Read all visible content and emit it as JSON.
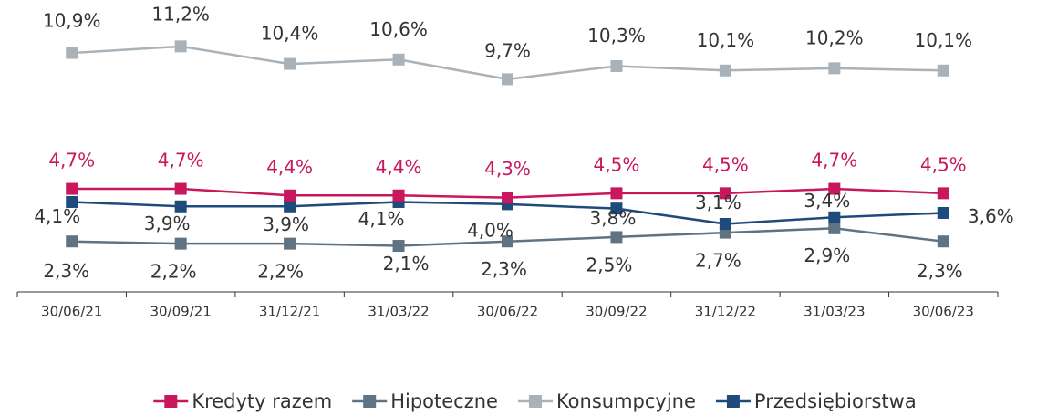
{
  "chart_data": {
    "type": "line",
    "categories": [
      "30/06/21",
      "30/09/21",
      "31/12/21",
      "31/03/22",
      "30/06/22",
      "30/09/22",
      "31/12/22",
      "31/03/23",
      "30/06/23"
    ],
    "ylim": [
      0,
      12.9
    ],
    "series": [
      {
        "name": "Kredyty razem",
        "color": "#c8175d",
        "label_color": "#c8175d",
        "values": [
          4.7,
          4.7,
          4.4,
          4.4,
          4.3,
          4.5,
          4.5,
          4.7,
          4.5
        ],
        "value_labels": [
          "4,7%",
          "4,7%",
          "4,4%",
          "4,4%",
          "4,3%",
          "4,5%",
          "4,5%",
          "4,7%",
          "4,5%"
        ]
      },
      {
        "name": "Hipoteczne",
        "color": "#5f7383",
        "label_color": "#333333",
        "values": [
          2.3,
          2.2,
          2.2,
          2.1,
          2.3,
          2.5,
          2.7,
          2.9,
          2.3
        ],
        "value_labels": [
          "2,3%",
          "2,2%",
          "2,2%",
          "2,1%",
          "2,3%",
          "2,5%",
          "2,7%",
          "2,9%",
          "2,3%"
        ]
      },
      {
        "name": "Konsumpcyjne",
        "color": "#a9b1b9",
        "label_color": "#333333",
        "values": [
          10.9,
          11.2,
          10.4,
          10.6,
          9.7,
          10.3,
          10.1,
          10.2,
          10.1
        ],
        "value_labels": [
          "10,9%",
          "11,2%",
          "10,4%",
          "10,6%",
          "9,7%",
          "10,3%",
          "10,1%",
          "10,2%",
          "10,1%"
        ]
      },
      {
        "name": "Przedsiębiorstwa",
        "color": "#1f4a7c",
        "label_color": "#333333",
        "values": [
          4.1,
          3.9,
          3.9,
          4.1,
          4.0,
          3.8,
          3.1,
          3.4,
          3.6
        ],
        "value_labels": [
          "4,1%",
          "3,9%",
          "3,9%",
          "4,1%",
          "4,0%",
          "3,8%",
          "3,1%",
          "3,4%",
          "3,6%"
        ]
      }
    ]
  }
}
